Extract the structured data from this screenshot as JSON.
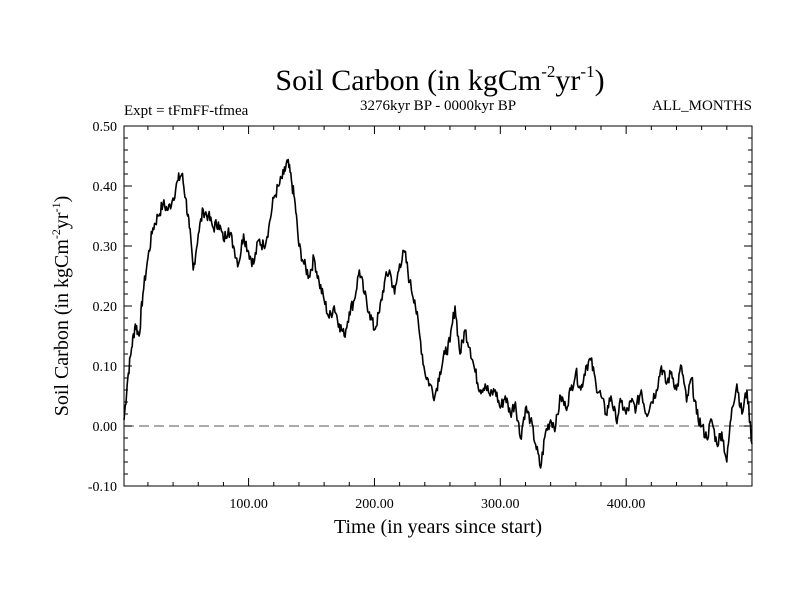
{
  "chart_data": {
    "type": "line",
    "title_main": "Soil Carbon (in kgCm",
    "title_exp1": "-2",
    "title_mid": "yr",
    "title_exp2": "-1",
    "title_end": ")",
    "subtitle_left": "Expt = tFmFF-tfmea",
    "subtitle_center": "3276kyr BP - 0000kyr BP",
    "subtitle_right": "ALL_MONTHS",
    "xlabel": "Time (in years since start)",
    "ylabel_main": "Soil Carbon (in kgCm",
    "ylabel_exp1": "-2",
    "ylabel_mid": "yr",
    "ylabel_exp2": "-1",
    "ylabel_end": ")",
    "xlim": [
      1,
      500
    ],
    "ylim": [
      -0.1,
      0.5
    ],
    "x_ticks": [
      100,
      200,
      300,
      400
    ],
    "x_tick_labels": [
      "100.00",
      "200.00",
      "300.00",
      "400.00"
    ],
    "y_ticks": [
      -0.1,
      0.0,
      0.1,
      0.2,
      0.3,
      0.4,
      0.5
    ],
    "y_tick_labels": [
      "-0.10",
      "0.00",
      "0.10",
      "0.20",
      "0.30",
      "0.40",
      "0.50"
    ],
    "zero_line": 0.0,
    "series": [
      {
        "name": "soil_carbon",
        "x": [
          1,
          4,
          7,
          10,
          13,
          16,
          20,
          24,
          28,
          32,
          36,
          40,
          44,
          47,
          50,
          53,
          56,
          60,
          64,
          68,
          72,
          76,
          80,
          84,
          88,
          92,
          96,
          100,
          104,
          108,
          112,
          116,
          120,
          124,
          128,
          131,
          134,
          137,
          140,
          144,
          148,
          152,
          156,
          160,
          164,
          168,
          172,
          176,
          180,
          184,
          188,
          192,
          196,
          200,
          204,
          208,
          212,
          216,
          220,
          224,
          228,
          232,
          236,
          240,
          244,
          248,
          252,
          256,
          260,
          264,
          268,
          272,
          276,
          280,
          284,
          288,
          292,
          296,
          300,
          304,
          308,
          312,
          316,
          320,
          324,
          328,
          332,
          336,
          340,
          344,
          348,
          352,
          356,
          360,
          364,
          368,
          372,
          376,
          380,
          384,
          388,
          392,
          396,
          400,
          404,
          408,
          412,
          416,
          420,
          424,
          428,
          432,
          436,
          440,
          444,
          448,
          452,
          456,
          460,
          464,
          468,
          472,
          476,
          480,
          484,
          488,
          492,
          496,
          500
        ],
        "y": [
          0.01,
          0.08,
          0.13,
          0.17,
          0.15,
          0.22,
          0.28,
          0.33,
          0.35,
          0.37,
          0.36,
          0.38,
          0.41,
          0.42,
          0.38,
          0.33,
          0.26,
          0.32,
          0.36,
          0.35,
          0.33,
          0.34,
          0.31,
          0.33,
          0.3,
          0.27,
          0.32,
          0.29,
          0.27,
          0.31,
          0.3,
          0.33,
          0.38,
          0.4,
          0.42,
          0.44,
          0.41,
          0.37,
          0.3,
          0.27,
          0.25,
          0.28,
          0.24,
          0.21,
          0.18,
          0.2,
          0.17,
          0.15,
          0.19,
          0.21,
          0.26,
          0.22,
          0.19,
          0.16,
          0.19,
          0.24,
          0.26,
          0.22,
          0.27,
          0.29,
          0.24,
          0.21,
          0.15,
          0.09,
          0.07,
          0.05,
          0.09,
          0.12,
          0.14,
          0.2,
          0.12,
          0.16,
          0.13,
          0.09,
          0.06,
          0.07,
          0.05,
          0.06,
          0.03,
          0.05,
          0.02,
          0.04,
          -0.02,
          0.03,
          0.01,
          -0.03,
          -0.07,
          -0.01,
          0.01,
          0.0,
          0.05,
          0.03,
          0.06,
          0.09,
          0.06,
          0.1,
          0.11,
          0.07,
          0.05,
          0.02,
          0.05,
          0.01,
          0.04,
          0.02,
          0.04,
          0.03,
          0.06,
          0.02,
          0.04,
          0.06,
          0.1,
          0.07,
          0.09,
          0.06,
          0.1,
          0.04,
          0.08,
          0.02,
          0.0,
          -0.02,
          0.01,
          -0.03,
          -0.01,
          -0.06,
          0.03,
          0.07,
          0.02,
          0.06,
          -0.03
        ]
      }
    ]
  }
}
